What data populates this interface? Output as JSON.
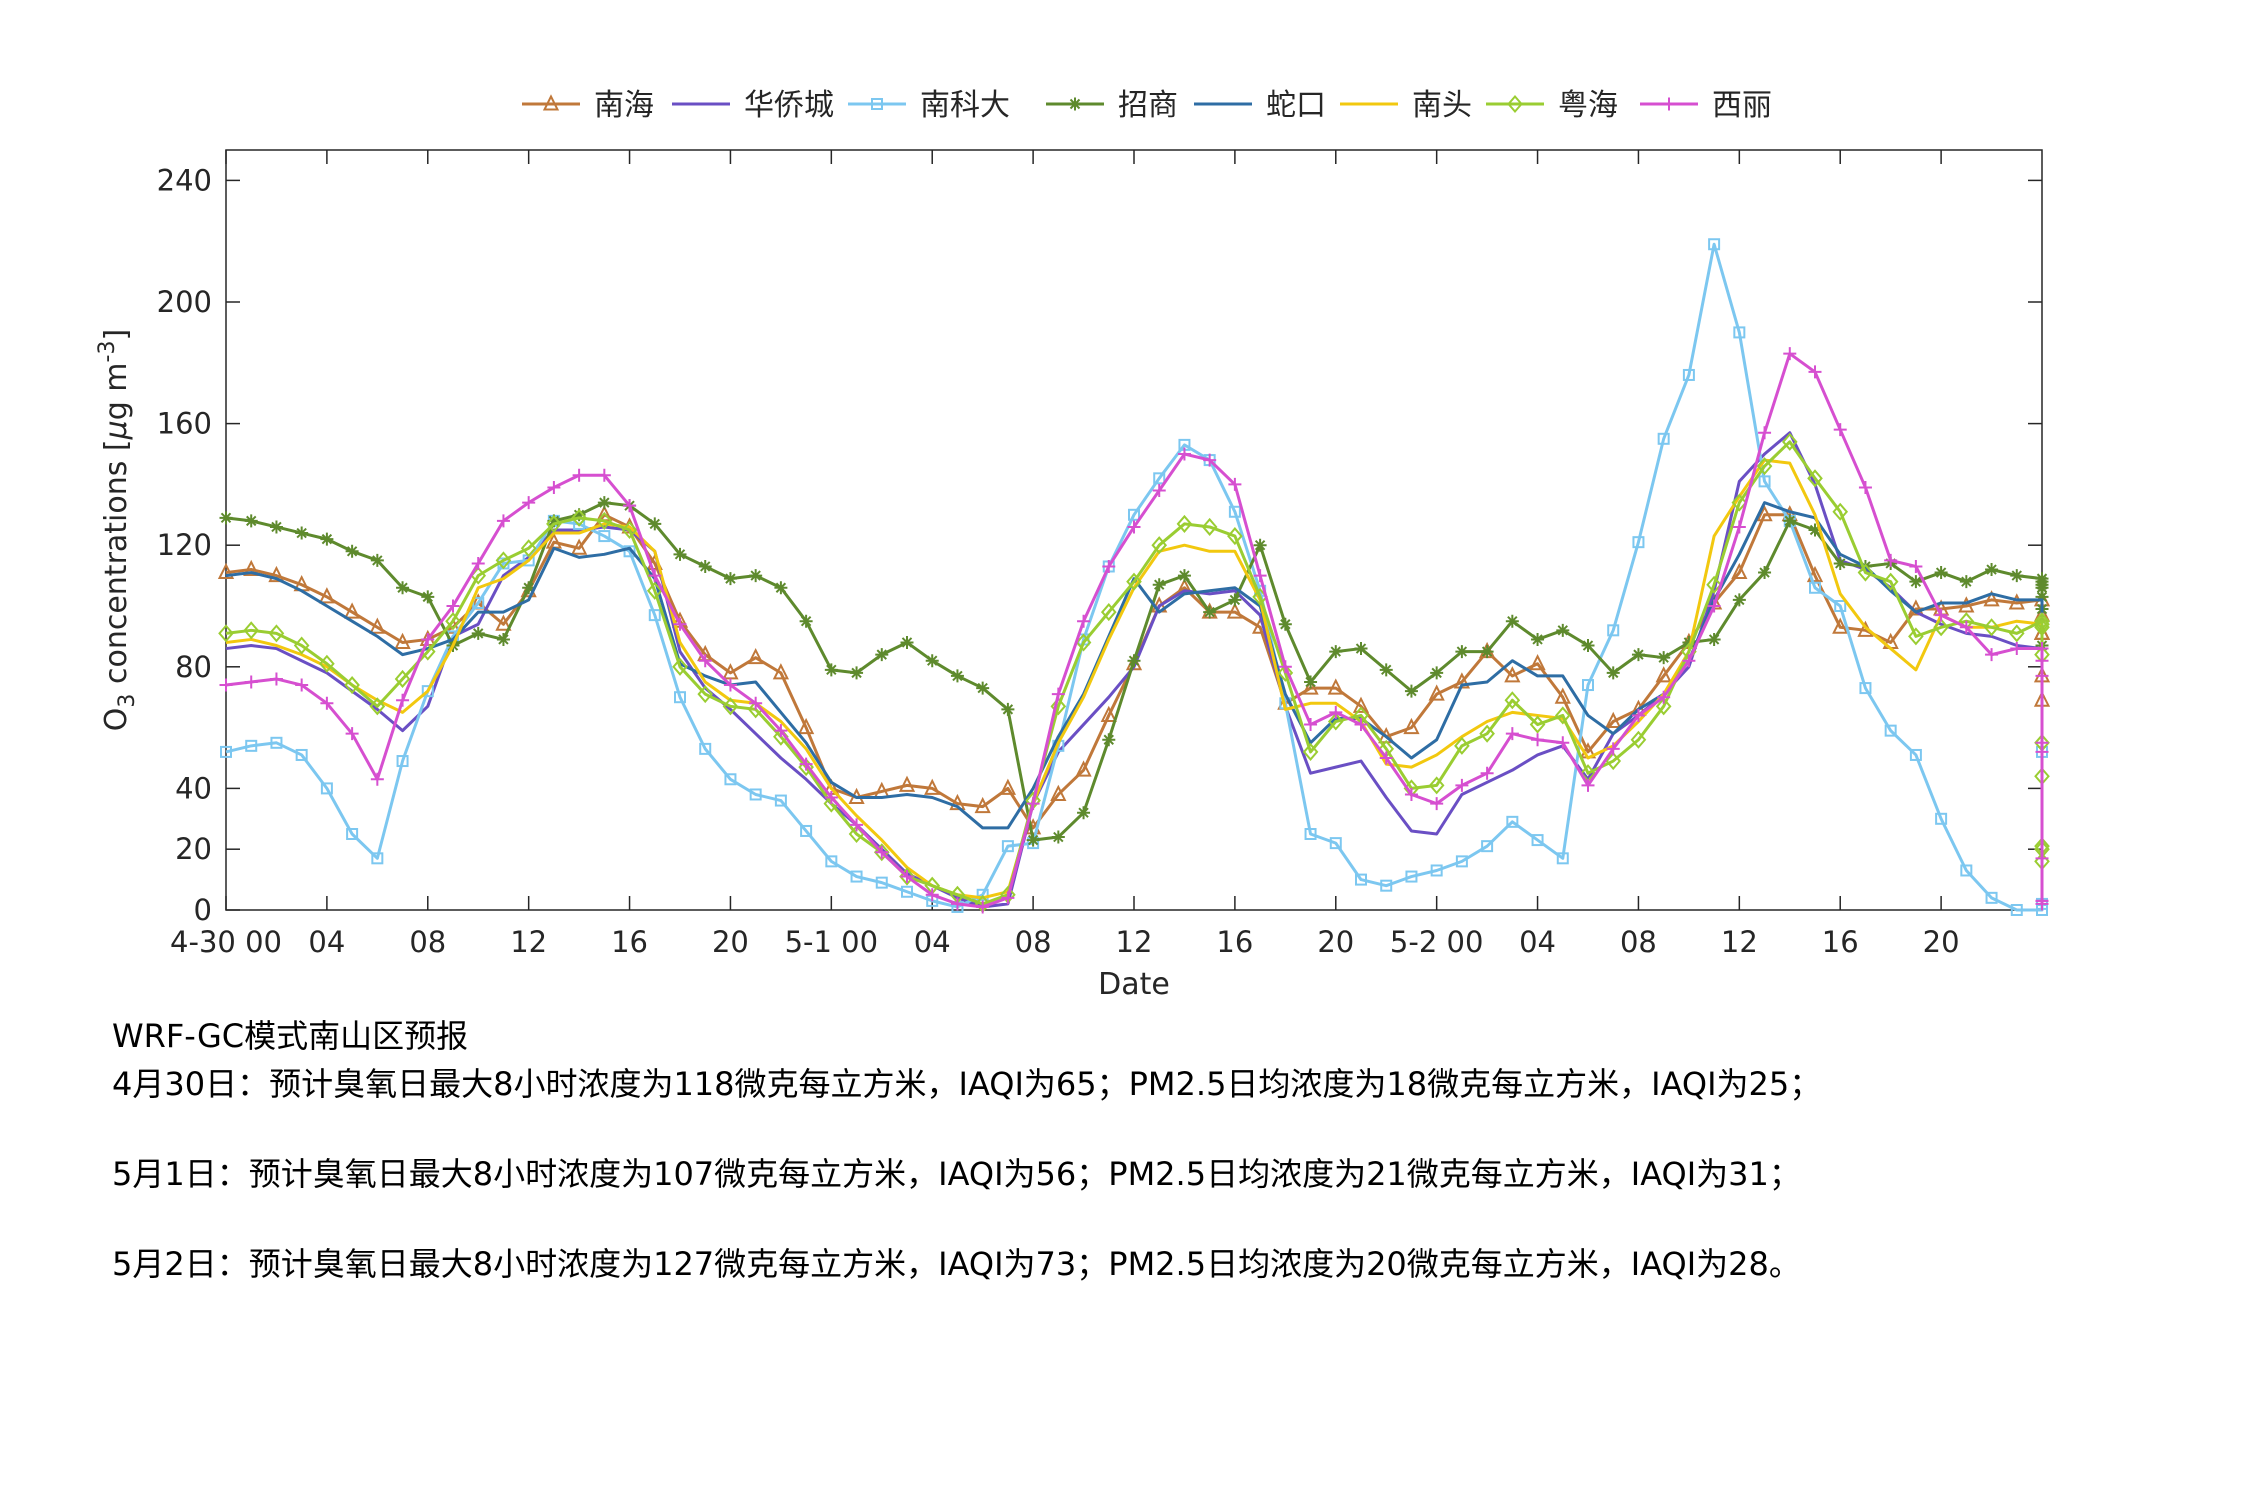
{
  "chart_data": {
    "type": "line",
    "xlabel": "Date",
    "ylabel_main": "O",
    "ylabel_sub": "3",
    "ylabel_mid": " concentrations [",
    "ylabel_mu": "μ",
    "ylabel_g": "g m",
    "ylabel_sup": "-3",
    "ylabel_end": "]",
    "ylim": [
      0,
      250
    ],
    "xlim": [
      0,
      72
    ],
    "ytick_values": [
      0,
      20,
      40,
      80,
      120,
      160,
      200,
      240
    ],
    "xticks": [
      {
        "x": 0,
        "label": "4-30 00"
      },
      {
        "x": 4,
        "label": "04"
      },
      {
        "x": 8,
        "label": "08"
      },
      {
        "x": 12,
        "label": "12"
      },
      {
        "x": 16,
        "label": "16"
      },
      {
        "x": 20,
        "label": "20"
      },
      {
        "x": 24,
        "label": "5-1 00"
      },
      {
        "x": 28,
        "label": "04"
      },
      {
        "x": 32,
        "label": "08"
      },
      {
        "x": 36,
        "label": "12"
      },
      {
        "x": 40,
        "label": "16"
      },
      {
        "x": 44,
        "label": "20"
      },
      {
        "x": 48,
        "label": "5-2 00"
      },
      {
        "x": 52,
        "label": "04"
      },
      {
        "x": 56,
        "label": "08"
      },
      {
        "x": 60,
        "label": "12"
      },
      {
        "x": 64,
        "label": "16"
      },
      {
        "x": 68,
        "label": "20"
      }
    ],
    "grid": false,
    "legend_position": "top",
    "series": [
      {
        "name": "南海",
        "color": "#c0783a",
        "marker": "triangle",
        "values": [
          111,
          112,
          110,
          107,
          103,
          98,
          93,
          88,
          89,
          93,
          101,
          94,
          105,
          121,
          119,
          130,
          126,
          114,
          95,
          84,
          78,
          83,
          78,
          60,
          40,
          37,
          39,
          41,
          40,
          35,
          34,
          40,
          27,
          38,
          46,
          64,
          81,
          100,
          106,
          98,
          98,
          93,
          68,
          73,
          73,
          67,
          57,
          60,
          71,
          75,
          85,
          77,
          81,
          70,
          52,
          62,
          66,
          77,
          88,
          101,
          111,
          130,
          130,
          110,
          93,
          92,
          88,
          99,
          99,
          100,
          102,
          101,
          102,
          97,
          91,
          91,
          77,
          69
        ]
      },
      {
        "name": "华侨城",
        "color": "#6a4fc4",
        "marker": "none",
        "values": [
          86,
          87,
          86,
          82,
          78,
          72,
          66,
          59,
          67,
          90,
          94,
          110,
          116,
          125,
          125,
          126,
          125,
          118,
          85,
          73,
          66,
          58,
          50,
          43,
          35,
          28,
          20,
          12,
          8,
          4,
          1,
          2,
          35,
          52,
          61,
          70,
          80,
          100,
          105,
          104,
          105,
          97,
          67,
          45,
          47,
          49,
          37,
          26,
          25,
          38,
          42,
          46,
          51,
          54,
          43,
          58,
          64,
          71,
          80,
          105,
          141,
          150,
          157,
          140,
          115,
          112,
          106,
          98,
          94,
          91,
          90,
          87,
          86,
          75,
          62,
          11,
          2,
          2,
          2,
          54
        ]
      },
      {
        "name": "南科大",
        "color": "#7cc7f0",
        "marker": "square",
        "values": [
          52,
          54,
          55,
          51,
          40,
          25,
          17,
          49,
          72,
          90,
          101,
          114,
          115,
          128,
          127,
          123,
          118,
          97,
          70,
          53,
          43,
          38,
          36,
          26,
          16,
          11,
          9,
          6,
          3,
          1,
          5,
          21,
          22,
          54,
          89,
          113,
          130,
          142,
          153,
          148,
          131,
          105,
          68,
          25,
          22,
          10,
          8,
          11,
          13,
          16,
          21,
          29,
          23,
          17,
          74,
          92,
          121,
          155,
          176,
          219,
          190,
          141,
          128,
          106,
          100,
          73,
          59,
          51,
          30,
          13,
          4,
          0,
          0,
          0,
          0,
          0,
          2,
          52
        ]
      },
      {
        "name": "招商",
        "color": "#5e8a2d",
        "marker": "star",
        "values": [
          129,
          128,
          126,
          124,
          122,
          118,
          115,
          106,
          103,
          87,
          91,
          89,
          106,
          128,
          130,
          134,
          133,
          127,
          117,
          113,
          109,
          110,
          106,
          95,
          79,
          78,
          84,
          88,
          82,
          77,
          73,
          66,
          23,
          24,
          32,
          56,
          82,
          107,
          110,
          98,
          102,
          120,
          94,
          75,
          85,
          86,
          79,
          72,
          78,
          85,
          85,
          95,
          89,
          92,
          87,
          78,
          84,
          83,
          88,
          89,
          102,
          111,
          128,
          125,
          114,
          113,
          114,
          108,
          111,
          108,
          112,
          110,
          109,
          108,
          107,
          106,
          103,
          99,
          87
        ]
      },
      {
        "name": "蛇口",
        "color": "#2e6da4",
        "marker": "none",
        "values": [
          110,
          111,
          109,
          105,
          100,
          95,
          90,
          84,
          86,
          89,
          98,
          98,
          102,
          119,
          116,
          117,
          119,
          109,
          81,
          77,
          74,
          75,
          65,
          55,
          42,
          37,
          37,
          38,
          37,
          34,
          27,
          27,
          40,
          57,
          71,
          90,
          109,
          98,
          104,
          105,
          106,
          100,
          71,
          55,
          63,
          63,
          57,
          50,
          56,
          74,
          75,
          82,
          77,
          77,
          64,
          58,
          66,
          71,
          82,
          102,
          117,
          134,
          131,
          129,
          117,
          113,
          105,
          98,
          101,
          101,
          104,
          102,
          102,
          102,
          97,
          70,
          67,
          70,
          54,
          58
        ]
      },
      {
        "name": "南头",
        "color": "#f2c80f",
        "marker": "none",
        "values": [
          88,
          89,
          87,
          84,
          80,
          74,
          69,
          65,
          72,
          87,
          106,
          109,
          115,
          124,
          124,
          127,
          126,
          118,
          88,
          75,
          69,
          68,
          62,
          53,
          40,
          31,
          23,
          14,
          8,
          5,
          4,
          6,
          35,
          55,
          70,
          89,
          106,
          118,
          120,
          118,
          118,
          102,
          66,
          68,
          68,
          62,
          48,
          47,
          51,
          57,
          62,
          65,
          64,
          63,
          50,
          54,
          62,
          71,
          85,
          123,
          136,
          148,
          147,
          130,
          104,
          93,
          86,
          79,
          97,
          93,
          93,
          95,
          94,
          94,
          94,
          56,
          57,
          57,
          42,
          54
        ]
      },
      {
        "name": "粤海",
        "color": "#9acd32",
        "marker": "diamond",
        "values": [
          91,
          92,
          91,
          87,
          81,
          74,
          67,
          76,
          85,
          95,
          110,
          115,
          119,
          127,
          129,
          128,
          125,
          105,
          80,
          71,
          67,
          66,
          57,
          47,
          35,
          25,
          19,
          11,
          8,
          5,
          2,
          5,
          36,
          67,
          88,
          98,
          108,
          120,
          127,
          126,
          123,
          103,
          78,
          52,
          62,
          64,
          53,
          40,
          41,
          54,
          58,
          69,
          61,
          64,
          45,
          49,
          56,
          67,
          85,
          107,
          134,
          146,
          154,
          142,
          131,
          111,
          108,
          90,
          93,
          95,
          93,
          91,
          95,
          94,
          93,
          84,
          44,
          20,
          21,
          16,
          55
        ]
      },
      {
        "name": "西丽",
        "color": "#d64fd0",
        "marker": "plus",
        "values": [
          74,
          75,
          76,
          74,
          68,
          58,
          43,
          69,
          89,
          100,
          114,
          128,
          134,
          139,
          143,
          143,
          133,
          110,
          94,
          82,
          74,
          68,
          59,
          48,
          37,
          28,
          19,
          11,
          5,
          2,
          1,
          4,
          35,
          71,
          95,
          113,
          126,
          138,
          150,
          148,
          140,
          110,
          80,
          61,
          65,
          61,
          50,
          38,
          35,
          41,
          45,
          58,
          56,
          55,
          41,
          53,
          64,
          70,
          82,
          100,
          126,
          157,
          183,
          177,
          158,
          139,
          115,
          113,
          97,
          93,
          84,
          86,
          86,
          82,
          77,
          55,
          17,
          2,
          3,
          3,
          52
        ]
      }
    ]
  },
  "forecast": {
    "title": "WRF-GC模式南山区预报",
    "line1": "4月30日：预计臭氧日最大8小时浓度为118微克每立方米，IAQI为65；PM2.5日均浓度为18微克每立方米，IAQI为25；",
    "line2": "5月1日：预计臭氧日最大8小时浓度为107微克每立方米，IAQI为56；PM2.5日均浓度为21微克每立方米，IAQI为31；",
    "line3": "5月2日：预计臭氧日最大8小时浓度为127微克每立方米，IAQI为73；PM2.5日均浓度为20微克每立方米，IAQI为28。"
  }
}
